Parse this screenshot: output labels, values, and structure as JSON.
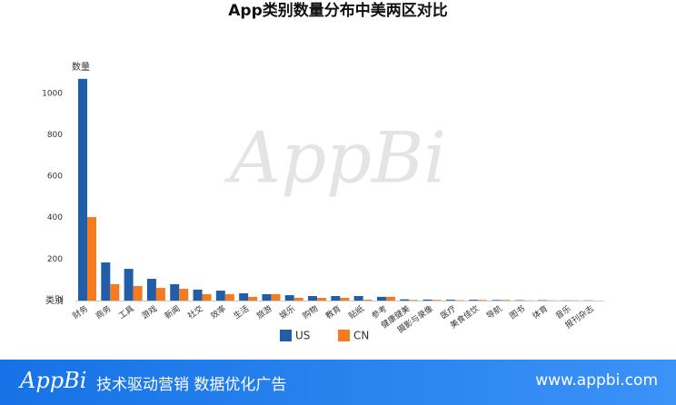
{
  "chart_data": {
    "type": "bar",
    "title": "App类别数量分布中美两区对比",
    "y_label": "数量",
    "x_label": "类别",
    "watermark": "AppBi",
    "categories": [
      "财务",
      "商务",
      "工具",
      "游戏",
      "新闻",
      "社交",
      "效率",
      "生活",
      "旅游",
      "娱乐",
      "购物",
      "教育",
      "贴纸",
      "参考",
      "健康健美",
      "摄影与录像",
      "医疗",
      "美食佳饮",
      "导航",
      "图书",
      "体育",
      "音乐",
      "报刊杂志"
    ],
    "series": [
      {
        "name": "US",
        "color": "#225ea8",
        "values": [
          1070,
          184,
          153,
          105,
          79,
          53,
          48,
          35,
          31,
          26,
          22,
          22,
          22,
          18,
          6,
          5,
          4,
          4,
          3,
          2,
          2,
          1,
          1
        ]
      },
      {
        "name": "CN",
        "color": "#f47b20",
        "values": [
          403,
          79,
          70,
          61,
          57,
          31,
          31,
          18,
          31,
          13,
          13,
          13,
          4,
          18,
          3,
          3,
          2,
          3,
          3,
          1,
          1,
          1,
          0
        ]
      }
    ],
    "ylim": [
      0,
      1100
    ],
    "yticks": [
      0,
      200,
      400,
      600,
      800,
      1000
    ],
    "grid": false
  },
  "footer": {
    "logo": "AppBi",
    "slogan": "技术驱动营销 数据优化广告",
    "url": "www.appbi.com"
  }
}
